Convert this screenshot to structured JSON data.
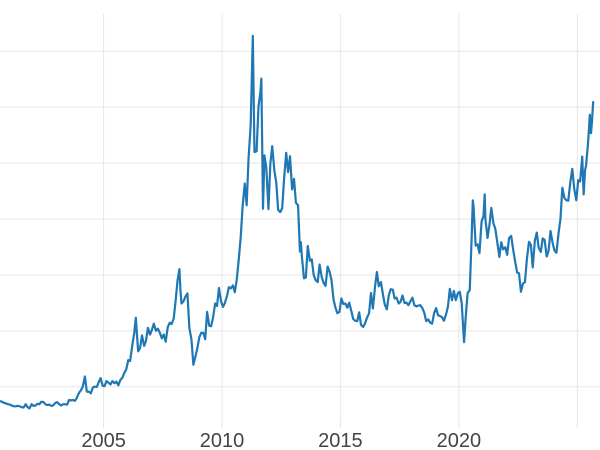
{
  "figure": {
    "background": "#ffffff",
    "title": ""
  },
  "chart_data": {
    "type": "line",
    "title": "",
    "xlabel": "",
    "ylabel": "",
    "legend": null,
    "grid": true,
    "line_color": "#1f77b4",
    "line_width": 2.2,
    "grid_color": "#e7e7e7",
    "tick_color": "#e0e0e0",
    "tick_label_color": "#444444",
    "xlim": [
      2000.625,
      2025.96
    ],
    "ylim": [
      2.3,
      51.1
    ],
    "x_gridlines": [
      2005,
      2010,
      2015,
      2020,
      2025
    ],
    "y_gridlines": [
      46.67,
      40.0,
      33.33,
      26.67,
      20.0,
      13.33,
      6.67
    ],
    "x_tick_labels": [
      {
        "value": 2005,
        "label": "2005"
      },
      {
        "value": 2010,
        "label": "2010"
      },
      {
        "value": 2015,
        "label": "2015"
      },
      {
        "value": 2020,
        "label": "2020"
      }
    ],
    "points": [
      [
        2000.62,
        4.95
      ],
      [
        2000.71,
        4.9
      ],
      [
        2000.79,
        4.75
      ],
      [
        2000.87,
        4.7
      ],
      [
        2000.96,
        4.6
      ],
      [
        2001.04,
        4.55
      ],
      [
        2001.12,
        4.45
      ],
      [
        2001.21,
        4.35
      ],
      [
        2001.29,
        4.35
      ],
      [
        2001.37,
        4.4
      ],
      [
        2001.46,
        4.35
      ],
      [
        2001.54,
        4.25
      ],
      [
        2001.62,
        4.2
      ],
      [
        2001.71,
        4.6
      ],
      [
        2001.79,
        4.25
      ],
      [
        2001.87,
        4.1
      ],
      [
        2001.96,
        4.6
      ],
      [
        2002.04,
        4.4
      ],
      [
        2002.12,
        4.45
      ],
      [
        2002.21,
        4.65
      ],
      [
        2002.29,
        4.6
      ],
      [
        2002.37,
        4.9
      ],
      [
        2002.46,
        4.85
      ],
      [
        2002.54,
        4.6
      ],
      [
        2002.62,
        4.5
      ],
      [
        2002.71,
        4.55
      ],
      [
        2002.79,
        4.4
      ],
      [
        2002.87,
        4.45
      ],
      [
        2002.96,
        4.75
      ],
      [
        2003.04,
        4.85
      ],
      [
        2003.12,
        4.6
      ],
      [
        2003.21,
        4.45
      ],
      [
        2003.29,
        4.6
      ],
      [
        2003.37,
        4.6
      ],
      [
        2003.46,
        4.55
      ],
      [
        2003.54,
        5.1
      ],
      [
        2003.62,
        5.05
      ],
      [
        2003.71,
        5.1
      ],
      [
        2003.79,
        5.0
      ],
      [
        2003.87,
        5.35
      ],
      [
        2003.96,
        5.95
      ],
      [
        2004.04,
        6.25
      ],
      [
        2004.12,
        6.7
      ],
      [
        2004.21,
        7.9
      ],
      [
        2004.29,
        6.1
      ],
      [
        2004.37,
        6.1
      ],
      [
        2004.46,
        5.9
      ],
      [
        2004.54,
        6.55
      ],
      [
        2004.62,
        6.7
      ],
      [
        2004.71,
        6.65
      ],
      [
        2004.79,
        7.2
      ],
      [
        2004.87,
        7.7
      ],
      [
        2004.96,
        6.8
      ],
      [
        2005.04,
        6.75
      ],
      [
        2005.12,
        7.35
      ],
      [
        2005.21,
        7.15
      ],
      [
        2005.29,
        6.95
      ],
      [
        2005.37,
        7.35
      ],
      [
        2005.46,
        7.1
      ],
      [
        2005.54,
        7.3
      ],
      [
        2005.62,
        6.85
      ],
      [
        2005.71,
        7.5
      ],
      [
        2005.79,
        7.75
      ],
      [
        2005.87,
        8.3
      ],
      [
        2005.96,
        8.8
      ],
      [
        2006.04,
        9.85
      ],
      [
        2006.12,
        9.75
      ],
      [
        2006.21,
        11.6
      ],
      [
        2006.29,
        13.0
      ],
      [
        2006.36,
        14.9
      ],
      [
        2006.42,
        12.4
      ],
      [
        2006.46,
        10.9
      ],
      [
        2006.54,
        11.3
      ],
      [
        2006.62,
        12.8
      ],
      [
        2006.71,
        11.55
      ],
      [
        2006.79,
        12.15
      ],
      [
        2006.87,
        13.7
      ],
      [
        2006.96,
        12.9
      ],
      [
        2007.04,
        13.45
      ],
      [
        2007.12,
        14.2
      ],
      [
        2007.21,
        13.35
      ],
      [
        2007.29,
        13.6
      ],
      [
        2007.37,
        13.15
      ],
      [
        2007.46,
        12.45
      ],
      [
        2007.54,
        12.9
      ],
      [
        2007.62,
        12.05
      ],
      [
        2007.71,
        13.8
      ],
      [
        2007.79,
        14.3
      ],
      [
        2007.87,
        14.15
      ],
      [
        2007.96,
        14.8
      ],
      [
        2008.04,
        16.9
      ],
      [
        2008.12,
        19.3
      ],
      [
        2008.2,
        20.7
      ],
      [
        2008.25,
        17.9
      ],
      [
        2008.29,
        16.6
      ],
      [
        2008.37,
        16.85
      ],
      [
        2008.46,
        17.45
      ],
      [
        2008.54,
        17.8
      ],
      [
        2008.62,
        13.7
      ],
      [
        2008.71,
        12.3
      ],
      [
        2008.79,
        9.3
      ],
      [
        2008.87,
        10.2
      ],
      [
        2008.96,
        11.3
      ],
      [
        2009.04,
        12.55
      ],
      [
        2009.12,
        13.1
      ],
      [
        2009.21,
        13.1
      ],
      [
        2009.29,
        12.35
      ],
      [
        2009.37,
        15.6
      ],
      [
        2009.46,
        13.95
      ],
      [
        2009.54,
        13.9
      ],
      [
        2009.62,
        14.9
      ],
      [
        2009.71,
        16.6
      ],
      [
        2009.79,
        16.3
      ],
      [
        2009.87,
        18.45
      ],
      [
        2009.96,
        16.85
      ],
      [
        2010.04,
        16.2
      ],
      [
        2010.12,
        16.65
      ],
      [
        2010.21,
        17.5
      ],
      [
        2010.29,
        18.55
      ],
      [
        2010.37,
        18.4
      ],
      [
        2010.46,
        18.75
      ],
      [
        2010.54,
        17.95
      ],
      [
        2010.62,
        19.4
      ],
      [
        2010.71,
        21.95
      ],
      [
        2010.79,
        24.55
      ],
      [
        2010.87,
        28.2
      ],
      [
        2010.96,
        30.9
      ],
      [
        2011.04,
        28.3
      ],
      [
        2011.12,
        33.9
      ],
      [
        2011.21,
        37.85
      ],
      [
        2011.3,
        48.5
      ],
      [
        2011.37,
        34.65
      ],
      [
        2011.46,
        34.75
      ],
      [
        2011.54,
        40.1
      ],
      [
        2011.62,
        41.75
      ],
      [
        2011.66,
        43.4
      ],
      [
        2011.73,
        27.9
      ],
      [
        2011.79,
        34.25
      ],
      [
        2011.87,
        32.8
      ],
      [
        2011.96,
        27.85
      ],
      [
        2012.04,
        33.25
      ],
      [
        2012.12,
        35.35
      ],
      [
        2012.21,
        32.45
      ],
      [
        2012.29,
        31.0
      ],
      [
        2012.37,
        27.75
      ],
      [
        2012.46,
        27.5
      ],
      [
        2012.54,
        27.95
      ],
      [
        2012.62,
        31.45
      ],
      [
        2012.71,
        34.55
      ],
      [
        2012.79,
        32.25
      ],
      [
        2012.87,
        34.15
      ],
      [
        2012.96,
        30.2
      ],
      [
        2013.04,
        31.45
      ],
      [
        2013.12,
        28.6
      ],
      [
        2013.21,
        28.3
      ],
      [
        2013.29,
        22.8
      ],
      [
        2013.33,
        23.9
      ],
      [
        2013.37,
        22.25
      ],
      [
        2013.46,
        19.6
      ],
      [
        2013.54,
        19.7
      ],
      [
        2013.62,
        23.45
      ],
      [
        2013.71,
        21.7
      ],
      [
        2013.79,
        21.85
      ],
      [
        2013.87,
        20.0
      ],
      [
        2013.96,
        19.35
      ],
      [
        2014.04,
        19.15
      ],
      [
        2014.12,
        21.25
      ],
      [
        2014.21,
        19.75
      ],
      [
        2014.29,
        19.05
      ],
      [
        2014.37,
        18.7
      ],
      [
        2014.46,
        21.0
      ],
      [
        2014.54,
        20.4
      ],
      [
        2014.62,
        19.45
      ],
      [
        2014.71,
        17.05
      ],
      [
        2014.79,
        16.1
      ],
      [
        2014.87,
        15.45
      ],
      [
        2014.96,
        15.6
      ],
      [
        2015.04,
        17.2
      ],
      [
        2015.12,
        16.55
      ],
      [
        2015.21,
        16.6
      ],
      [
        2015.29,
        16.1
      ],
      [
        2015.37,
        16.7
      ],
      [
        2015.46,
        15.7
      ],
      [
        2015.54,
        14.75
      ],
      [
        2015.62,
        14.55
      ],
      [
        2015.71,
        14.5
      ],
      [
        2015.79,
        15.55
      ],
      [
        2015.87,
        14.05
      ],
      [
        2015.96,
        13.8
      ],
      [
        2016.04,
        14.25
      ],
      [
        2016.12,
        14.9
      ],
      [
        2016.21,
        15.45
      ],
      [
        2016.29,
        17.85
      ],
      [
        2016.37,
        16.0
      ],
      [
        2016.46,
        18.6
      ],
      [
        2016.54,
        20.35
      ],
      [
        2016.62,
        18.65
      ],
      [
        2016.71,
        19.15
      ],
      [
        2016.79,
        17.75
      ],
      [
        2016.87,
        16.5
      ],
      [
        2016.96,
        15.9
      ],
      [
        2017.04,
        17.55
      ],
      [
        2017.12,
        18.3
      ],
      [
        2017.21,
        18.25
      ],
      [
        2017.29,
        17.2
      ],
      [
        2017.37,
        17.3
      ],
      [
        2017.46,
        16.6
      ],
      [
        2017.54,
        16.8
      ],
      [
        2017.62,
        17.55
      ],
      [
        2017.71,
        16.65
      ],
      [
        2017.79,
        16.7
      ],
      [
        2017.87,
        16.4
      ],
      [
        2017.96,
        16.9
      ],
      [
        2018.04,
        17.3
      ],
      [
        2018.12,
        16.4
      ],
      [
        2018.21,
        16.25
      ],
      [
        2018.29,
        16.35
      ],
      [
        2018.37,
        16.4
      ],
      [
        2018.46,
        16.05
      ],
      [
        2018.54,
        15.5
      ],
      [
        2018.62,
        14.5
      ],
      [
        2018.71,
        14.7
      ],
      [
        2018.79,
        14.3
      ],
      [
        2018.87,
        14.2
      ],
      [
        2018.96,
        15.5
      ],
      [
        2019.04,
        16.05
      ],
      [
        2019.12,
        15.2
      ],
      [
        2019.21,
        15.1
      ],
      [
        2019.29,
        14.95
      ],
      [
        2019.37,
        14.55
      ],
      [
        2019.46,
        15.3
      ],
      [
        2019.54,
        16.25
      ],
      [
        2019.62,
        18.35
      ],
      [
        2019.71,
        17.0
      ],
      [
        2019.79,
        18.1
      ],
      [
        2019.87,
        17.0
      ],
      [
        2019.96,
        17.85
      ],
      [
        2020.04,
        18.0
      ],
      [
        2020.12,
        16.65
      ],
      [
        2020.22,
        12.0
      ],
      [
        2020.29,
        15.0
      ],
      [
        2020.37,
        17.85
      ],
      [
        2020.46,
        18.2
      ],
      [
        2020.54,
        24.4
      ],
      [
        2020.59,
        28.9
      ],
      [
        2020.62,
        28.15
      ],
      [
        2020.71,
        23.5
      ],
      [
        2020.79,
        23.65
      ],
      [
        2020.87,
        22.6
      ],
      [
        2020.96,
        26.4
      ],
      [
        2021.04,
        27.0
      ],
      [
        2021.09,
        29.6
      ],
      [
        2021.12,
        26.7
      ],
      [
        2021.21,
        24.4
      ],
      [
        2021.29,
        25.9
      ],
      [
        2021.37,
        28.0
      ],
      [
        2021.46,
        26.15
      ],
      [
        2021.54,
        25.5
      ],
      [
        2021.62,
        23.95
      ],
      [
        2021.71,
        22.15
      ],
      [
        2021.79,
        23.9
      ],
      [
        2021.87,
        23.05
      ],
      [
        2021.96,
        23.3
      ],
      [
        2022.04,
        22.4
      ],
      [
        2022.12,
        24.4
      ],
      [
        2022.21,
        24.65
      ],
      [
        2022.29,
        23.1
      ],
      [
        2022.37,
        21.7
      ],
      [
        2022.46,
        20.3
      ],
      [
        2022.54,
        20.2
      ],
      [
        2022.62,
        18.0
      ],
      [
        2022.71,
        19.0
      ],
      [
        2022.79,
        19.15
      ],
      [
        2022.87,
        21.8
      ],
      [
        2022.96,
        23.95
      ],
      [
        2023.04,
        23.6
      ],
      [
        2023.12,
        20.9
      ],
      [
        2023.21,
        24.1
      ],
      [
        2023.29,
        25.05
      ],
      [
        2023.37,
        23.25
      ],
      [
        2023.46,
        22.75
      ],
      [
        2023.54,
        24.35
      ],
      [
        2023.62,
        24.2
      ],
      [
        2023.71,
        22.2
      ],
      [
        2023.79,
        22.9
      ],
      [
        2023.87,
        25.25
      ],
      [
        2023.96,
        23.8
      ],
      [
        2024.04,
        22.9
      ],
      [
        2024.12,
        22.65
      ],
      [
        2024.21,
        25.0
      ],
      [
        2024.29,
        26.65
      ],
      [
        2024.37,
        30.4
      ],
      [
        2024.46,
        29.15
      ],
      [
        2024.54,
        28.9
      ],
      [
        2024.62,
        28.85
      ],
      [
        2024.71,
        31.15
      ],
      [
        2024.79,
        32.65
      ],
      [
        2024.87,
        30.3
      ],
      [
        2024.96,
        28.9
      ],
      [
        2025.04,
        31.3
      ],
      [
        2025.12,
        31.15
      ],
      [
        2025.21,
        34.1
      ],
      [
        2025.27,
        29.6
      ],
      [
        2025.33,
        32.5
      ],
      [
        2025.37,
        33.0
      ],
      [
        2025.46,
        35.9
      ],
      [
        2025.53,
        39.1
      ],
      [
        2025.58,
        36.9
      ],
      [
        2025.62,
        38.2
      ],
      [
        2025.67,
        40.6
      ]
    ]
  }
}
